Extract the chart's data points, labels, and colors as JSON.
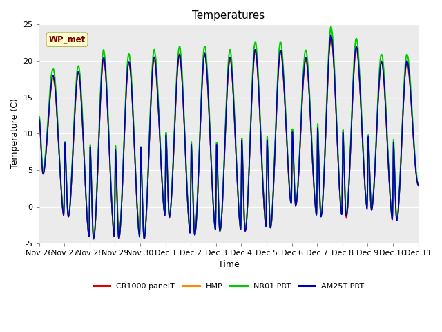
{
  "title": "Temperatures",
  "ylabel": "Temperature (C)",
  "xlabel": "Time",
  "ylim": [
    -5,
    25
  ],
  "bg_color": "#ebebeb",
  "fig_color": "#ffffff",
  "series": {
    "CR1000 panelT": {
      "color": "#dd0000",
      "lw": 1.2,
      "zorder": 3
    },
    "HMP": {
      "color": "#ff8800",
      "lw": 1.2,
      "zorder": 2
    },
    "NR01 PRT": {
      "color": "#00cc00",
      "lw": 1.4,
      "zorder": 4
    },
    "AM25T PRT": {
      "color": "#0000bb",
      "lw": 1.2,
      "zorder": 5
    }
  },
  "annotation_text": "WP_met",
  "annotation_color": "#800000",
  "annotation_bg": "#ffffcc",
  "annotation_edge": "#aaa855",
  "xtick_labels": [
    "Nov 26",
    "Nov 27",
    "Nov 28",
    "Nov 29",
    "Nov 30",
    "Dec 1",
    "Dec 2",
    "Dec 3",
    "Dec 4",
    "Dec 5",
    "Dec 6",
    "Dec 7",
    "Dec 8",
    "Dec 9",
    "Dec 10",
    "Dec 11"
  ],
  "num_days": 15,
  "points_per_day": 144,
  "ytick_labels": [
    "-5",
    "0",
    "5",
    "10",
    "15",
    "20",
    "25"
  ]
}
